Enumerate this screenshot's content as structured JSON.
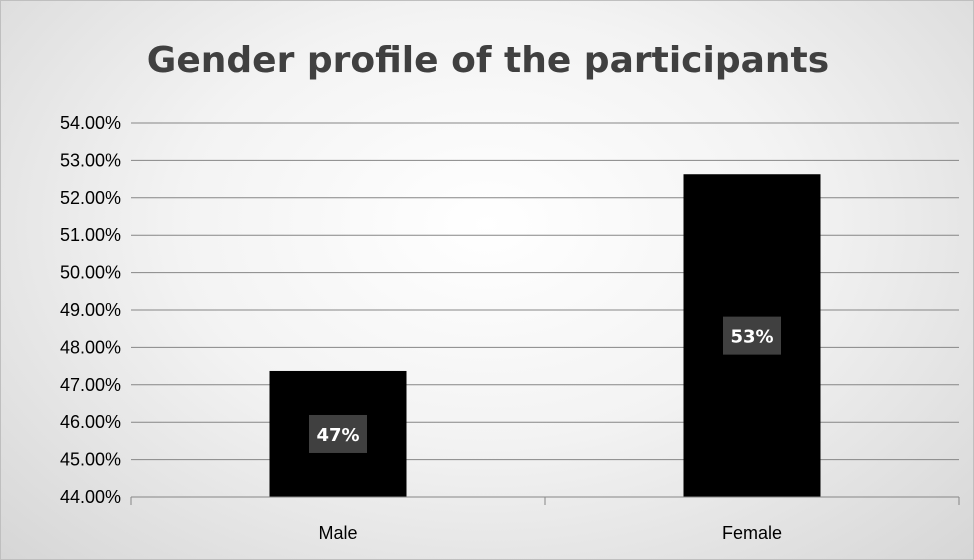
{
  "chart_data": {
    "type": "bar",
    "title": "Gender profile of the participants",
    "categories": [
      "Male",
      "Female"
    ],
    "values": [
      47.37,
      52.63
    ],
    "data_labels": [
      "47%",
      "53%"
    ],
    "ylim": [
      44,
      54
    ],
    "yticks": [
      "44.00%",
      "45.00%",
      "46.00%",
      "47.00%",
      "48.00%",
      "49.00%",
      "50.00%",
      "51.00%",
      "52.00%",
      "53.00%",
      "54.00%"
    ],
    "xlabel": "",
    "ylabel": "",
    "grid": true,
    "legend": "none",
    "bar_color": "#000000",
    "label_box_color": "#404040",
    "gridline_color": "#868686"
  }
}
